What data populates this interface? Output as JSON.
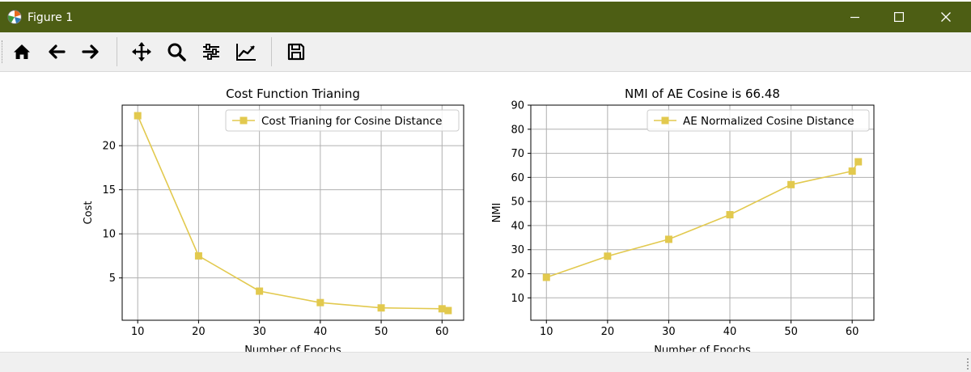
{
  "window": {
    "title": "Figure 1"
  },
  "toolbar": {
    "buttons": [
      "home-icon",
      "back-arrow-icon",
      "forward-arrow-icon",
      "pan-move-icon",
      "zoom-magnifier-icon",
      "configure-subplots-icon",
      "edit-axes-icon",
      "save-floppy-icon"
    ]
  },
  "colors": {
    "titlebar": "#4d5e14",
    "series": "#e2c94e",
    "grid": "#b0b0b0"
  },
  "chart_data": [
    {
      "type": "line",
      "title": "Cost Function Trianing",
      "xlabel": "Number of Epochs",
      "ylabel": "Cost",
      "x": [
        10,
        20,
        30,
        40,
        50,
        60,
        61
      ],
      "series": [
        {
          "name": "Cost Trianing for Cosine Distance",
          "values": [
            23.4,
            7.5,
            3.5,
            2.2,
            1.6,
            1.5,
            1.3
          ],
          "marker": "square",
          "color": "#e2c94e"
        }
      ],
      "xlim": [
        7.45,
        63.55
      ],
      "ylim": [
        0.2,
        24.6
      ],
      "xticks": [
        10,
        20,
        30,
        40,
        50,
        60
      ],
      "yticks": [
        5,
        10,
        15,
        20
      ],
      "grid": true,
      "legend": "top-right"
    },
    {
      "type": "line",
      "title": "NMI of AE Cosine is 66.48",
      "xlabel": "Number of Epochs",
      "ylabel": "NMI",
      "x": [
        10,
        20,
        30,
        40,
        50,
        60,
        61
      ],
      "series": [
        {
          "name": "AE Normalized Cosine Distance",
          "values": [
            18.5,
            27.3,
            34.3,
            44.5,
            57.0,
            62.6,
            66.48
          ],
          "marker": "square",
          "color": "#e2c94e"
        }
      ],
      "xlim": [
        7.45,
        63.55
      ],
      "ylim": [
        0.7,
        90.0
      ],
      "xticks": [
        10,
        20,
        30,
        40,
        50,
        60
      ],
      "yticks": [
        10,
        20,
        30,
        40,
        50,
        60,
        70,
        80,
        90
      ],
      "grid": true,
      "legend": "top-right"
    }
  ]
}
